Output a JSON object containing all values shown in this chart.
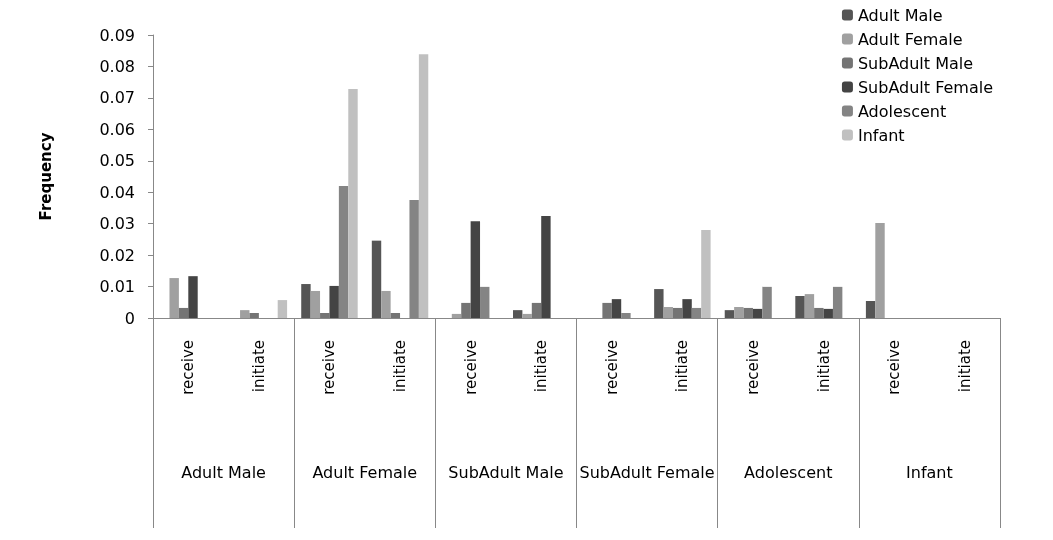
{
  "chart_data": {
    "type": "bar",
    "ylabel": "Frequency",
    "categories": [
      "receive",
      "initiate",
      "receive",
      "initiate",
      "receive",
      "initiate",
      "receive",
      "initiate",
      "receive",
      "initiate",
      "receive",
      "initiate"
    ],
    "annotations": [
      "Adult Male",
      "Adult Female",
      "SubAdult Male",
      "SubAdult Female",
      "Adolescent",
      "Infant"
    ],
    "series": [
      {
        "name": "Adult Male",
        "color": "#555555",
        "values": [
          0,
          0,
          0.0108,
          0.0246,
          0,
          0.0025,
          0,
          0.0092,
          0.0025,
          0.007,
          0.0054,
          0
        ]
      },
      {
        "name": "Adult Female",
        "color": "#a0a0a0",
        "values": [
          0.0127,
          0.0025,
          0.0086,
          0.0086,
          0.0013,
          0.0013,
          0,
          0.0035,
          0.0035,
          0.0076,
          0.0302,
          0
        ]
      },
      {
        "name": "SubAdult Male",
        "color": "#747474",
        "values": [
          0.0032,
          0.0016,
          0.0016,
          0.0016,
          0.0048,
          0.0048,
          0.0048,
          0.0032,
          0.0032,
          0.0032,
          0,
          0
        ]
      },
      {
        "name": "SubAdult Female",
        "color": "#444444",
        "values": [
          0.0133,
          0,
          0.0102,
          0,
          0.0308,
          0.0324,
          0.006,
          0.006,
          0.0029,
          0.0029,
          0,
          0
        ]
      },
      {
        "name": "Adolescent",
        "color": "#848484",
        "values": [
          0,
          0,
          0.042,
          0.0375,
          0.0099,
          0,
          0.0016,
          0.0032,
          0.0099,
          0.0099,
          0,
          0
        ]
      },
      {
        "name": "Infant",
        "color": "#c0c0c0",
        "values": [
          0,
          0.0057,
          0.0728,
          0.0839,
          0,
          0,
          0,
          0.028,
          0,
          0,
          0,
          0
        ]
      }
    ],
    "ylim": [
      0,
      0.09
    ],
    "yticks": [
      0,
      0.01,
      0.02,
      0.03,
      0.04,
      0.05,
      0.06,
      0.07,
      0.08,
      0.09
    ],
    "grid": false,
    "legend": "top right"
  }
}
